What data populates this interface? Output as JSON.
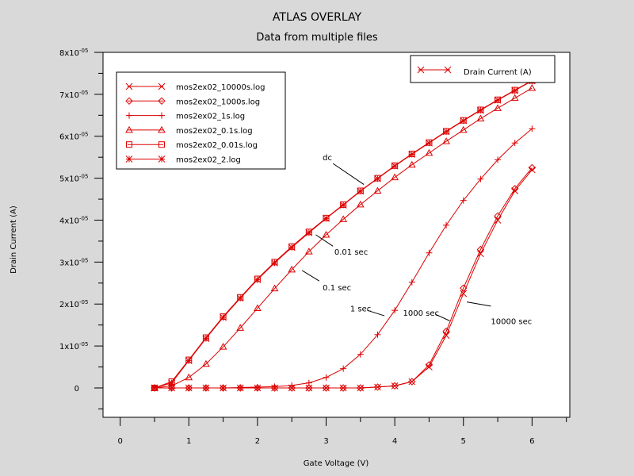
{
  "chart_data": {
    "type": "line",
    "title": "ATLAS OVERLAY",
    "subtitle": "Data from multiple files",
    "xlabel": "Gate Voltage (V)",
    "ylabel": "Drain Current (A)",
    "xlim": [
      -0.25,
      6.55
    ],
    "ylim": [
      -0.7,
      8
    ],
    "y_exponent_label": "-05",
    "x_ticks": [
      {
        "v": 0,
        "label": "0"
      },
      {
        "v": 1,
        "label": "1"
      },
      {
        "v": 2,
        "label": "2"
      },
      {
        "v": 3,
        "label": "3"
      },
      {
        "v": 4,
        "label": "4"
      },
      {
        "v": 5,
        "label": "5"
      },
      {
        "v": 6,
        "label": "6"
      }
    ],
    "y_ticks": [
      {
        "v": 0,
        "m": "0"
      },
      {
        "v": 1,
        "m": "1x10"
      },
      {
        "v": 2,
        "m": "2x10"
      },
      {
        "v": 3,
        "m": "3x10"
      },
      {
        "v": 4,
        "m": "4x10"
      },
      {
        "v": 5,
        "m": "5x10"
      },
      {
        "v": 6,
        "m": "6x10"
      },
      {
        "v": 7,
        "m": "7x10"
      },
      {
        "v": 8,
        "m": "8x10"
      }
    ],
    "line_color": "#dd0000",
    "x": [
      0.5,
      0.75,
      1.0,
      1.25,
      1.5,
      1.75,
      2.0,
      2.25,
      2.5,
      2.75,
      3.0,
      3.25,
      3.5,
      3.75,
      4.0,
      4.25,
      4.5,
      4.75,
      5.0,
      5.25,
      5.5,
      5.75,
      6.0
    ],
    "series": [
      {
        "name": "mos2ex02_10000s.log",
        "marker": "x",
        "values": [
          0,
          0,
          0,
          0,
          0,
          0,
          0,
          0,
          0,
          0,
          0,
          0,
          0,
          0.02,
          0.05,
          0.15,
          0.5,
          1.25,
          2.25,
          3.2,
          4.0,
          4.7,
          5.2
        ]
      },
      {
        "name": "mos2ex02_1000s.log",
        "marker": "diamond",
        "values": [
          0,
          0,
          0,
          0,
          0,
          0,
          0,
          0,
          0,
          0,
          0,
          0,
          0,
          0.02,
          0.05,
          0.15,
          0.55,
          1.35,
          2.38,
          3.3,
          4.1,
          4.75,
          5.25
        ]
      },
      {
        "name": "mos2ex02_1s.log",
        "marker": "plus",
        "values": [
          0,
          0,
          0,
          0,
          0,
          0.01,
          0.02,
          0.03,
          0.06,
          0.12,
          0.25,
          0.46,
          0.8,
          1.27,
          1.85,
          2.52,
          3.22,
          3.88,
          4.47,
          4.98,
          5.44,
          5.84,
          6.18
        ]
      },
      {
        "name": "mos2ex02_0.1s.log",
        "marker": "triangle",
        "values": [
          0,
          0.05,
          0.25,
          0.57,
          0.98,
          1.43,
          1.9,
          2.37,
          2.82,
          3.25,
          3.65,
          4.02,
          4.37,
          4.7,
          5.02,
          5.32,
          5.6,
          5.88,
          6.15,
          6.42,
          6.67,
          6.91,
          7.15
        ]
      },
      {
        "name": "mos2ex02_0.01s.log",
        "marker": "square",
        "values": [
          0,
          0.15,
          0.67,
          1.2,
          1.7,
          2.16,
          2.6,
          3.0,
          3.37,
          3.72,
          4.05,
          4.37,
          4.7,
          5.0,
          5.3,
          5.58,
          5.85,
          6.12,
          6.38,
          6.63,
          6.87,
          7.1,
          7.33
        ]
      },
      {
        "name": "mos2ex02_2.log",
        "marker": "star",
        "values": [
          0,
          0.12,
          0.65,
          1.18,
          1.68,
          2.14,
          2.58,
          2.98,
          3.35,
          3.7,
          4.04,
          4.36,
          4.69,
          4.99,
          5.29,
          5.57,
          5.84,
          6.11,
          6.37,
          6.62,
          6.86,
          7.09,
          7.32
        ]
      }
    ],
    "legend2": {
      "label": "Drain Current (A)",
      "marker": "x"
    },
    "annotations": [
      {
        "text": "dc",
        "tx": 2.95,
        "ty": 5.5,
        "lx1": 3.1,
        "ly1": 5.35,
        "lx2": 3.55,
        "ly2": 4.85
      },
      {
        "text": "0.01 sec",
        "tx": 3.12,
        "ty": 3.25,
        "lx1": 3.1,
        "ly1": 3.38,
        "lx2": 2.85,
        "ly2": 3.65
      },
      {
        "text": "0.1 sec",
        "tx": 2.95,
        "ty": 2.4,
        "lx1": 2.9,
        "ly1": 2.55,
        "lx2": 2.65,
        "ly2": 2.8
      },
      {
        "text": "1 sec",
        "tx": 3.35,
        "ty": 1.9,
        "lx1": 3.6,
        "ly1": 1.85,
        "lx2": 3.85,
        "ly2": 1.72
      },
      {
        "text": "1000 sec",
        "tx": 4.12,
        "ty": 1.8,
        "lx1": 4.6,
        "ly1": 1.75,
        "lx2": 4.8,
        "ly2": 1.6
      },
      {
        "text": "10000 sec",
        "tx": 5.4,
        "ty": 1.6,
        "lx1": 5.4,
        "ly1": 1.95,
        "lx2": 5.05,
        "ly2": 2.05
      }
    ]
  }
}
